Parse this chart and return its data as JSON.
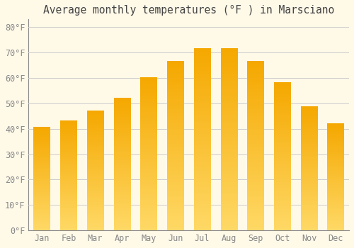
{
  "title": "Average monthly temperatures (°F ) in Marsciano",
  "months": [
    "Jan",
    "Feb",
    "Mar",
    "Apr",
    "May",
    "Jun",
    "Jul",
    "Aug",
    "Sep",
    "Oct",
    "Nov",
    "Dec"
  ],
  "values": [
    40.5,
    43,
    47,
    52,
    60,
    66.5,
    71.5,
    71.5,
    66.5,
    58,
    48.5,
    42
  ],
  "bar_color_top": "#F5A800",
  "bar_color_bottom": "#FFD966",
  "ylim": [
    0,
    83
  ],
  "yticks": [
    0,
    10,
    20,
    30,
    40,
    50,
    60,
    70,
    80
  ],
  "ytick_labels": [
    "0°F",
    "10°F",
    "20°F",
    "30°F",
    "40°F",
    "50°F",
    "60°F",
    "70°F",
    "80°F"
  ],
  "background_color": "#FFF9E8",
  "grid_color": "#CCCCCC",
  "title_fontsize": 10.5,
  "tick_fontsize": 8.5,
  "font_family": "monospace",
  "bar_width": 0.62
}
